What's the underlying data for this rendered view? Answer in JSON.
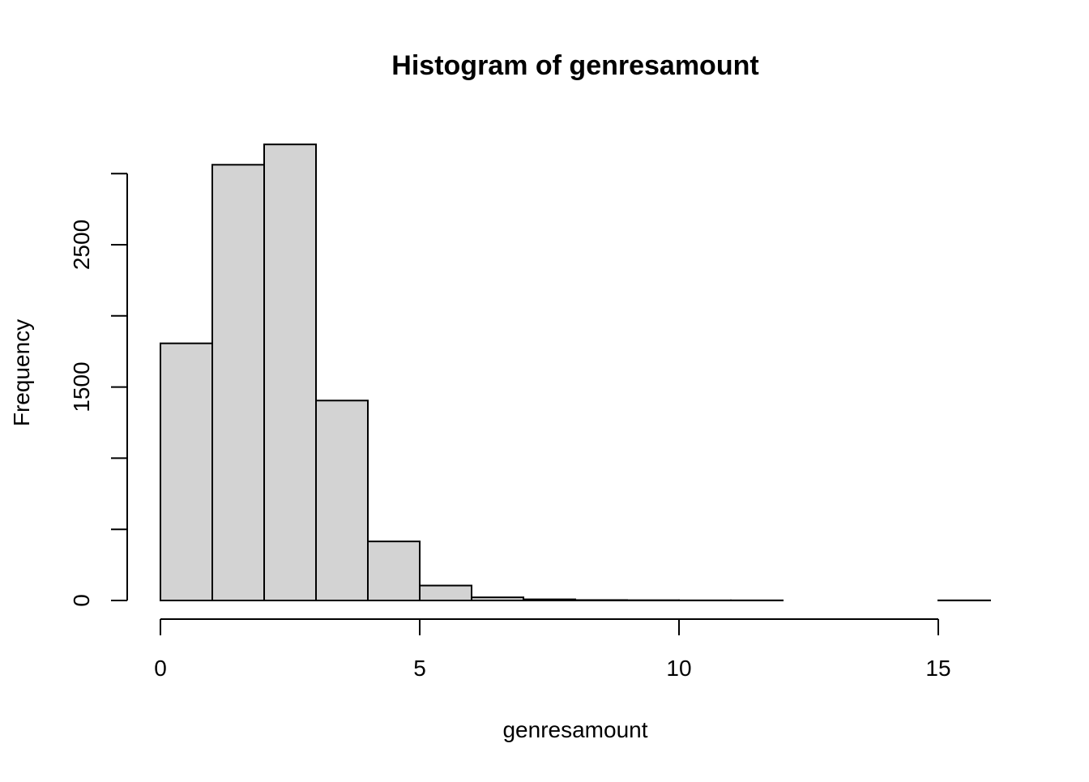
{
  "chart_data": {
    "type": "bar",
    "title": "Histogram of genresamount",
    "xlabel": "genresamount",
    "ylabel": "Frequency",
    "bins": [
      {
        "start": 0,
        "end": 1,
        "count": 1807
      },
      {
        "start": 1,
        "end": 2,
        "count": 3062
      },
      {
        "start": 2,
        "end": 3,
        "count": 3205
      },
      {
        "start": 3,
        "end": 4,
        "count": 1405
      },
      {
        "start": 4,
        "end": 5,
        "count": 415
      },
      {
        "start": 5,
        "end": 6,
        "count": 105
      },
      {
        "start": 6,
        "end": 7,
        "count": 22
      },
      {
        "start": 7,
        "end": 8,
        "count": 8
      },
      {
        "start": 8,
        "end": 9,
        "count": 3
      },
      {
        "start": 9,
        "end": 10,
        "count": 2
      },
      {
        "start": 10,
        "end": 11,
        "count": 1
      },
      {
        "start": 11,
        "end": 12,
        "count": 1
      },
      {
        "start": 12,
        "end": 13,
        "count": 0
      },
      {
        "start": 13,
        "end": 14,
        "count": 0
      },
      {
        "start": 14,
        "end": 15,
        "count": 0
      },
      {
        "start": 15,
        "end": 16,
        "count": 1
      }
    ],
    "xlim": [
      0,
      16
    ],
    "ylim": [
      0,
      3200
    ],
    "x_ticks": [
      0,
      5,
      10,
      15
    ],
    "y_ticks": [
      0,
      500,
      1000,
      1500,
      2000,
      2500,
      3000
    ],
    "y_tick_labels": [
      "0",
      "",
      "",
      "1500",
      "",
      "2500",
      ""
    ],
    "grid": false,
    "legend": "none",
    "colors": {
      "bar_fill": "#d3d3d3",
      "bar_stroke": "#000000",
      "background": "#ffffff"
    }
  }
}
